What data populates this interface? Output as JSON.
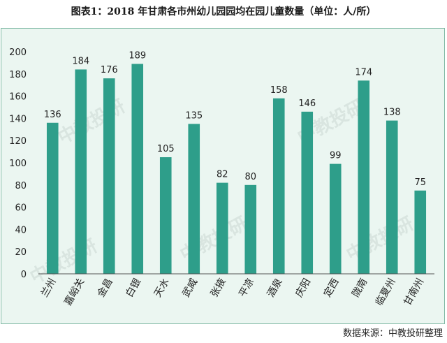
{
  "chart_data": {
    "type": "bar",
    "title": "图表1：2018 年甘肃各市州幼儿园园均在园儿童数量（单位：人/所）",
    "source": "数据来源：中教投研整理",
    "watermark": "中教投研",
    "categories": [
      "兰州",
      "嘉峪关",
      "金昌",
      "白银",
      "天水",
      "武威",
      "张掖",
      "平凉",
      "酒泉",
      "庆阳",
      "定西",
      "陇南",
      "临夏州",
      "甘南州"
    ],
    "values": [
      136,
      184,
      176,
      189,
      105,
      135,
      82,
      80,
      158,
      146,
      99,
      174,
      138,
      75
    ],
    "ylim": [
      0,
      200
    ],
    "yticks": [
      0,
      20,
      40,
      60,
      80,
      100,
      120,
      140,
      160,
      180,
      200
    ],
    "xlabel": "",
    "ylabel": "",
    "grid": false,
    "bar_color": "#2e9e8a",
    "background_color": "#ebf6f1",
    "data_labels": true
  }
}
